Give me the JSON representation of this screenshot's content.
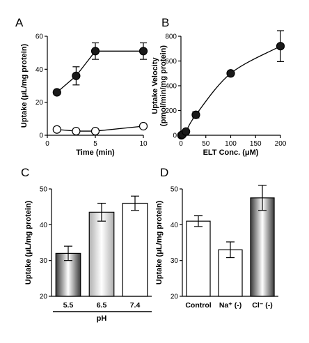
{
  "chart_data": [
    {
      "panel": "A",
      "type": "line",
      "xlabel": "Time (min)",
      "ylabel": "Uptake (μL/mg protein)",
      "xlim": [
        0,
        10
      ],
      "ylim": [
        0,
        60
      ],
      "xticks": [
        0,
        5,
        10
      ],
      "yticks": [
        0,
        20,
        40,
        60
      ],
      "series": [
        {
          "marker": "filled",
          "x": [
            1,
            3,
            5,
            10
          ],
          "y": [
            26,
            36,
            51,
            51
          ],
          "err": [
            1,
            5.5,
            5,
            5
          ]
        },
        {
          "marker": "open",
          "x": [
            1,
            3,
            5,
            10
          ],
          "y": [
            3.5,
            2.5,
            2.5,
            5.5
          ],
          "err": [
            0,
            0,
            0,
            0
          ]
        }
      ]
    },
    {
      "panel": "B",
      "type": "line",
      "xlabel": "ELT Conc. (μM)",
      "ylabel": "Uptake Velocity (pmol/min/mg protein)",
      "xlim": [
        0,
        200
      ],
      "ylim": [
        0,
        800
      ],
      "xticks": [
        0,
        50,
        100,
        150,
        200
      ],
      "yticks": [
        0,
        200,
        400,
        600,
        800
      ],
      "series": [
        {
          "marker": "filled",
          "x": [
            1,
            3,
            10,
            30,
            100,
            200
          ],
          "y": [
            0,
            5,
            30,
            165,
            500,
            720
          ],
          "err": [
            0,
            0,
            10,
            25,
            15,
            125
          ]
        }
      ]
    },
    {
      "panel": "C",
      "type": "bar",
      "categories": [
        "5.5",
        "6.5",
        "7.4"
      ],
      "values": [
        32,
        43.5,
        46
      ],
      "err": [
        2,
        2.5,
        2
      ],
      "xlabel": "pH",
      "ylabel": "Uptake (μL/mg protein)",
      "ylim": [
        20,
        50
      ],
      "yticks": [
        20,
        30,
        40,
        50
      ],
      "fills": [
        "dark",
        "light",
        "white"
      ]
    },
    {
      "panel": "D",
      "type": "bar",
      "categories": [
        "Control",
        "Na⁺ (-)",
        "Cl⁻ (-)"
      ],
      "values": [
        41,
        33,
        47.5
      ],
      "err": [
        1.5,
        2.2,
        3.5
      ],
      "xlabel": "",
      "ylabel": "Uptake (μL/mg protein)",
      "ylim": [
        20,
        50
      ],
      "yticks": [
        20,
        30,
        40,
        50
      ],
      "fills": [
        "white",
        "white",
        "dark"
      ]
    }
  ]
}
